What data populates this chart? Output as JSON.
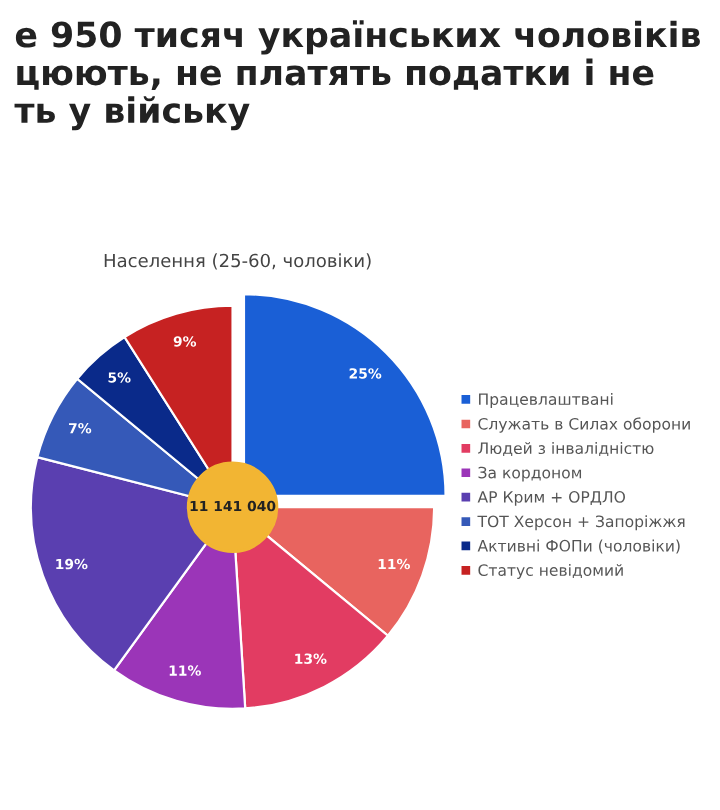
{
  "chart_data": {
    "type": "pie",
    "title": "е 950 тисяч українських чоловіків\nцюють, не платять податки і не\nть у війську",
    "subtitle": "Населення (25-60, чоловіки)",
    "categories": [
      "Працевлаштвані",
      "Служать в Силах оборони",
      "Людей з інвалідністю",
      "За кордоном",
      "АР Крим + ОРДЛО",
      "ТОТ Херсон + Запоріжжя",
      "Активні ФОПи (чоловіки)",
      "Статус невідомий"
    ],
    "values": [
      25,
      11,
      13,
      11,
      19,
      7,
      5,
      9
    ],
    "colors": [
      "#1a5fd6",
      "#e8645f",
      "#e23c62",
      "#9b35b8",
      "#5a3fb0",
      "#3559b8",
      "#0a2a8a",
      "#c62222"
    ],
    "value_labels": [
      "25%",
      "11%",
      "13%",
      "11%",
      "19%",
      "7%",
      "5%",
      "9%"
    ],
    "annotations": [
      "11 141 040"
    ],
    "legend": "right"
  }
}
